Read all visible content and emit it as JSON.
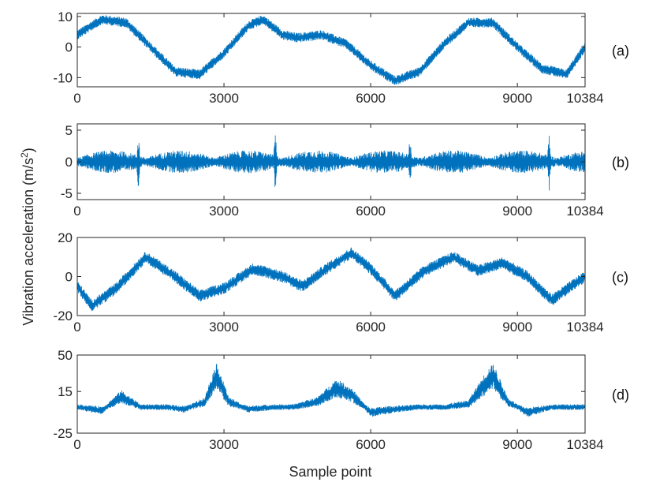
{
  "figure": {
    "ylabel_prefix": "Vibration acceleration (m/s",
    "ylabel_sup": "2",
    "ylabel_suffix": ")",
    "xlabel": "Sample point",
    "line_color": "#0072BD",
    "axes_color": "#262626"
  },
  "chart_data": [
    {
      "type": "line",
      "panel_label": "(a)",
      "x_range": [
        0,
        10384
      ],
      "xticks": [
        "0",
        "3000",
        "6000",
        "9000",
        "10384"
      ],
      "ylim": [
        -13,
        11
      ],
      "yticks": [
        "10",
        "0",
        "-10"
      ],
      "series": [
        {
          "x": [
            0,
            500,
            1000,
            1500,
            2000,
            2500,
            3000,
            3500,
            3800,
            4200,
            4500,
            5000,
            5500,
            6000,
            6500,
            7000,
            7500,
            8000,
            8500,
            9000,
            9500,
            10000,
            10384
          ],
          "values": [
            4,
            9,
            8,
            0,
            -8,
            -9,
            -2,
            7,
            9,
            4,
            3,
            4,
            1,
            -6,
            -11,
            -8,
            1,
            8,
            8,
            0,
            -7,
            -9,
            0
          ]
        }
      ],
      "noise_amplitude": 1.6
    },
    {
      "type": "line",
      "panel_label": "(b)",
      "x_range": [
        0,
        10384
      ],
      "xticks": [
        "0",
        "3000",
        "6000",
        "9000",
        "10384"
      ],
      "ylim": [
        -6,
        6
      ],
      "yticks": [
        "5",
        "0",
        "-5"
      ],
      "series": [
        {
          "x": [
            0,
            10384
          ],
          "values": [
            0,
            0
          ]
        }
      ],
      "impulses_x": [
        1250,
        4050,
        6800,
        9650
      ],
      "impulse_amplitude": 5.5,
      "noise_amplitude": 1.8
    },
    {
      "type": "line",
      "panel_label": "(c)",
      "x_range": [
        0,
        10384
      ],
      "xticks": [
        "0",
        "3000",
        "6000",
        "9000",
        "10384"
      ],
      "ylim": [
        -20,
        20
      ],
      "yticks": [
        "20",
        "0",
        "-20"
      ],
      "series": [
        {
          "x": [
            0,
            300,
            800,
            1400,
            2000,
            2500,
            3000,
            3600,
            4200,
            4600,
            5100,
            5600,
            6000,
            6500,
            7100,
            7700,
            8200,
            8700,
            9200,
            9700,
            10384
          ],
          "values": [
            -5,
            -15,
            -6,
            10,
            0,
            -10,
            -6,
            4,
            0,
            -5,
            4,
            12,
            4,
            -10,
            3,
            10,
            3,
            7,
            0,
            -12,
            0
          ]
        }
      ],
      "noise_amplitude": 3
    },
    {
      "type": "line",
      "panel_label": "(d)",
      "x_range": [
        0,
        10384
      ],
      "xticks": [
        "0",
        "3000",
        "6000",
        "9000",
        "10384"
      ],
      "ylim": [
        -25,
        50
      ],
      "yticks": [
        "50",
        "15",
        "-25"
      ],
      "series": [
        {
          "x": [
            0,
            500,
            900,
            1300,
            1800,
            2200,
            2600,
            2850,
            3100,
            3500,
            4000,
            4400,
            4900,
            5300,
            5600,
            6000,
            6500,
            7000,
            7500,
            8000,
            8300,
            8500,
            8800,
            9200,
            9700,
            10384
          ],
          "values": [
            0,
            -3,
            10,
            0,
            0,
            -2,
            5,
            30,
            5,
            -2,
            0,
            0,
            5,
            18,
            12,
            -5,
            -2,
            0,
            0,
            3,
            20,
            30,
            5,
            -5,
            0,
            0
          ]
        }
      ],
      "noise_amplitude": 9
    }
  ]
}
